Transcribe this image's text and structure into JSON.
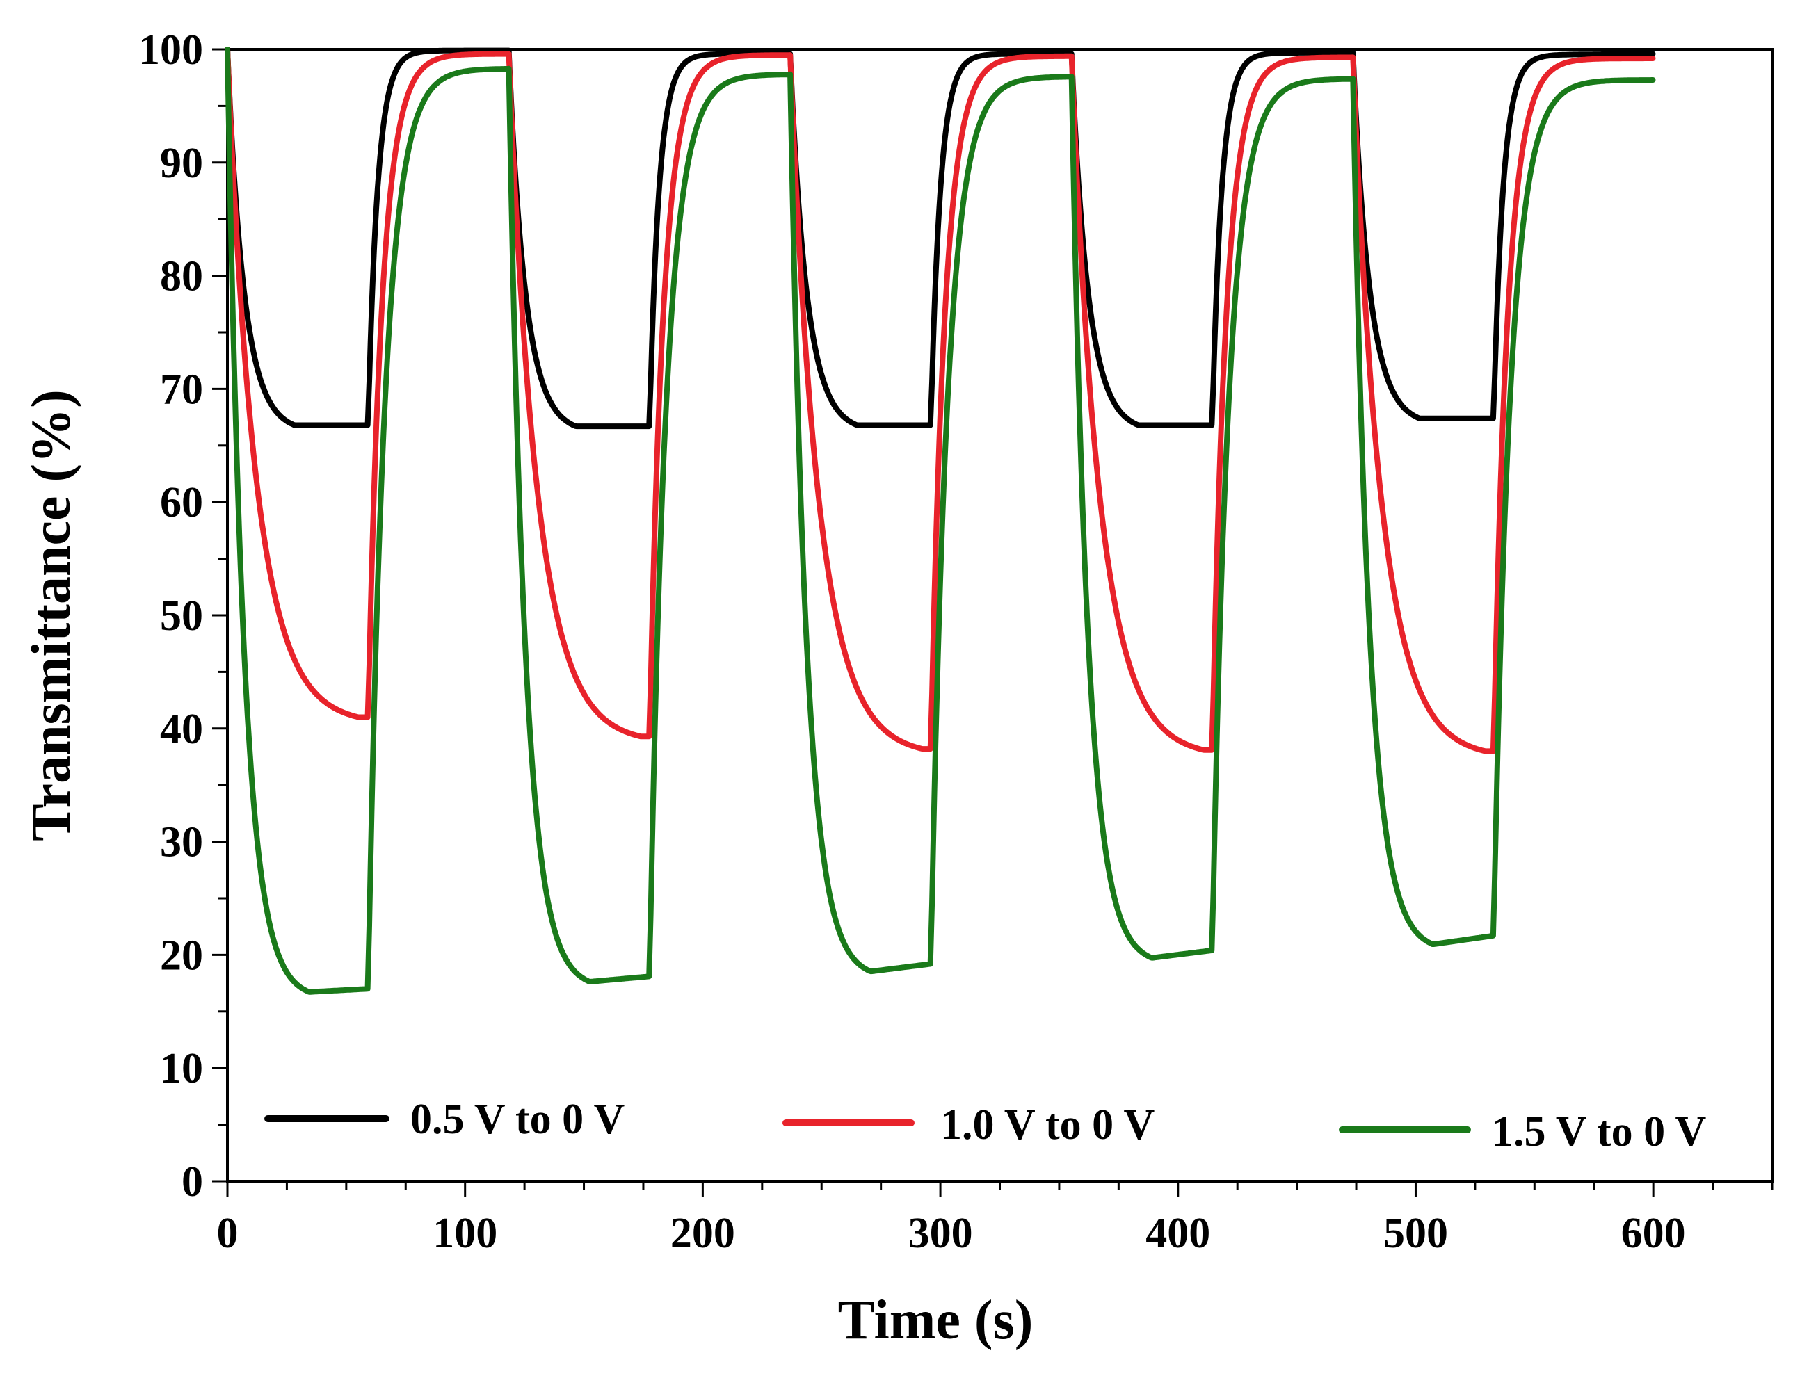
{
  "chart_data": {
    "type": "line",
    "title": "",
    "xlabel": "Time (s)",
    "ylabel": "Transmittance (%)",
    "xlim": [
      0,
      650
    ],
    "ylim": [
      0,
      100
    ],
    "xticks": [
      0,
      100,
      200,
      300,
      400,
      500,
      600
    ],
    "yticks": [
      0,
      10,
      20,
      30,
      40,
      50,
      60,
      70,
      80,
      90,
      100
    ],
    "x_minor_step": 25,
    "y_minor_step": 5,
    "grid": false,
    "legend_position": "bottom",
    "period_s": 118.4,
    "half_period_s": 59.2,
    "series": [
      {
        "name": "0.5 V to 0 V",
        "color": "#000000",
        "start": 100,
        "min_values": [
          66.8,
          66.7,
          66.8,
          66.8,
          67.4
        ],
        "max_values": [
          99.9,
          99.6,
          99.6,
          99.7,
          99.6
        ],
        "end_value": 99.5,
        "tau_color_s": 7,
        "tau_bleach_s": 4
      },
      {
        "name": "1.0 V to 0 V",
        "color": "#e8232b",
        "start": 100,
        "min_values": [
          41.0,
          39.3,
          38.2,
          38.1,
          38.0
        ],
        "max_values": [
          99.6,
          99.5,
          99.4,
          99.3,
          99.2
        ],
        "end_value": 99.2,
        "tau_color_s": 12,
        "tau_bleach_s": 6
      },
      {
        "name": "1.5 V to 0 V",
        "color": "#1a7a1a",
        "start": 100,
        "min_values": [
          16.7,
          17.6,
          18.5,
          19.7,
          20.9
        ],
        "plateau_end_values": [
          17.0,
          18.1,
          19.2,
          20.4,
          21.7
        ],
        "max_values": [
          98.3,
          97.8,
          97.6,
          97.4,
          97.3
        ],
        "end_value": 97.3,
        "tau_color_s": 7,
        "tau_bleach_s": 7
      }
    ]
  }
}
